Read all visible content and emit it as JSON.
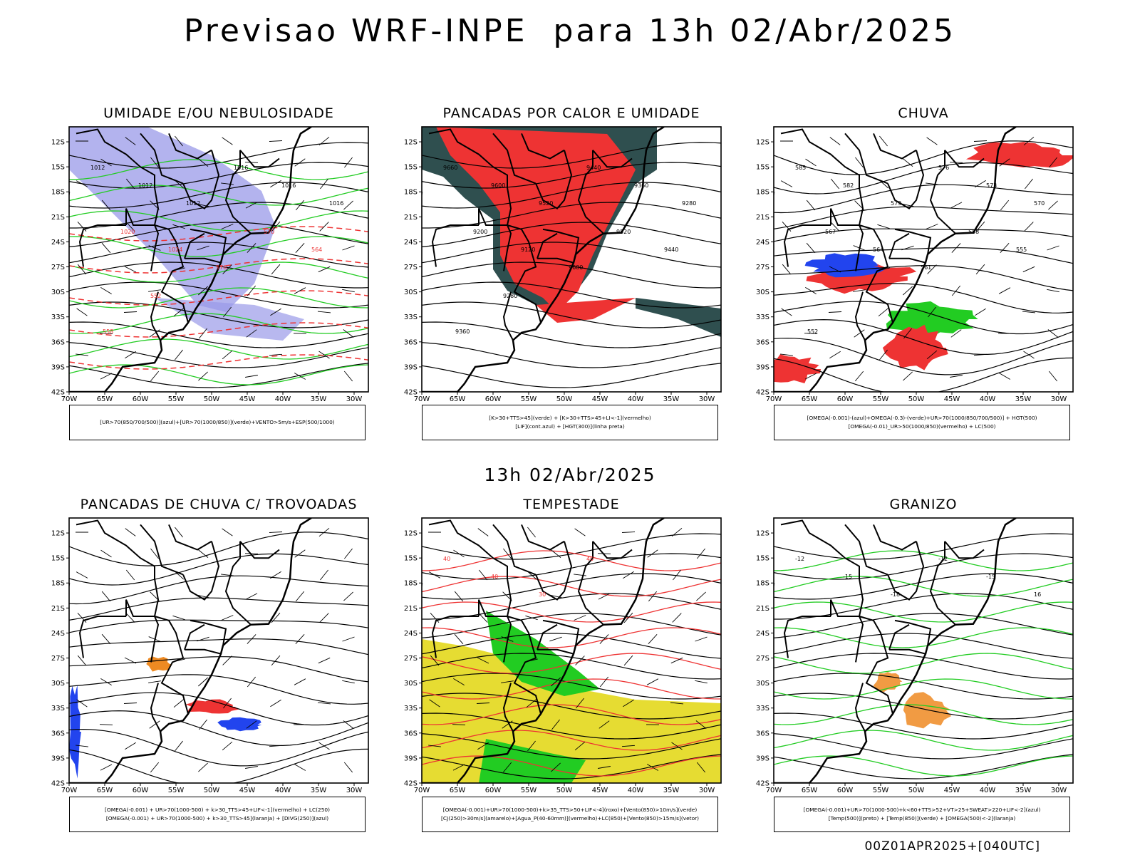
{
  "header": {
    "title": "Previsao WRF-INPE  para 13h 02/Abr/2025"
  },
  "mid_title": "13h 02/Abr/2025",
  "footer": "00Z01APR2025+[040UTC]",
  "axes": {
    "lat_ticks": [
      "12S",
      "15S",
      "18S",
      "21S",
      "24S",
      "27S",
      "30S",
      "33S",
      "36S",
      "39S",
      "42S"
    ],
    "lon_ticks": [
      "70W",
      "65W",
      "60W",
      "55W",
      "50W",
      "45W",
      "40W",
      "35W",
      "30W"
    ]
  },
  "colors": {
    "blue": "#9a9ae8",
    "green": "#22cc22",
    "red": "#ee3333",
    "dark_teal": "#2f4f4f",
    "yellow": "#e6dc32",
    "orange": "#ee8a22",
    "deep_blue": "#2244ee"
  },
  "panels": [
    {
      "id": "umidade",
      "title": "UMIDADE E/OU NEBULOSIDADE",
      "legend": [
        "[UR>70(850/700/500)](azul)+[UR>70(1000/850)](verde)+VENTO>5m/s+ESP(500/1000)"
      ],
      "contour_labels": [
        "1012",
        "1012",
        "1012",
        "1016",
        "1016",
        "1016",
        "1020",
        "1024",
        "576",
        "570",
        "564",
        "558",
        "552"
      ]
    },
    {
      "id": "pancadas_calor",
      "title": "PANCADAS POR CALOR E UMIDADE",
      "legend": [
        "[K>30+TTS>45](verde) + [K>30+TTS>45+LI<-1](vermelho)",
        "[LIF](cont.azul) + [HGT(300)](linha preta)"
      ],
      "contour_labels": [
        "9660",
        "9600",
        "9520",
        "9440",
        "9360",
        "9280",
        "9200",
        "9120",
        "9600",
        "9520",
        "9440",
        "9360",
        "9280"
      ]
    },
    {
      "id": "chuva",
      "title": "CHUVA",
      "legend": [
        "[OMEGA(-0.001)-(azul)+OMEGA(-0.3)-(verde)+UR>70(1000/850/700/500)] + HGT(500)",
        "[OMEGA(-0.01)_UR>50(1000/850)(vermelho) + LC(500)"
      ],
      "contour_labels": [
        "585",
        "582",
        "579",
        "576",
        "573",
        "570",
        "567",
        "564",
        "561",
        "558",
        "555",
        "552"
      ]
    },
    {
      "id": "trovoadas",
      "title": "PANCADAS DE CHUVA C/ TROVOADAS",
      "legend": [
        "[OMEGA(-0.001) + UR>70(1000-500) + k>30_TTS>45+LIF<-1](vermelho) + LC(250)",
        "[OMEGA(-0.001) + UR>70(1000-500) + k>30_TTS>45](laranja) + [DIVG(250)](azul)"
      ],
      "contour_labels": []
    },
    {
      "id": "tempestade",
      "title": "TEMPESTADE",
      "legend": [
        "[OMEGA(-0.001)+UR>70(1000-500)+k>35_TTS>50+LIF<-4](roxo)+[Vento(850)>10m/s](verde)",
        "[CJ(250)>30m/s](amarelo)+[Agua_P(40-60mm)](vermelho)+LC(850)+[Vento(850)>15m/s](vetor)"
      ],
      "contour_labels": [
        "40",
        "40",
        "30",
        "40"
      ]
    },
    {
      "id": "granizo",
      "title": "GRANIZO",
      "legend": [
        "[OMEGA(-0.001)+UR>70(1000-500)+k<60+TTS>52+VT>25+SWEAT>220+LIF<-2](azul)",
        "[Temp(500)](preto) + [Temp(850)](verde) + [OMEGA(500)<-2](laranja)"
      ],
      "contour_labels": [
        "-12",
        "-15",
        "-18",
        "-12",
        "-15",
        "16"
      ]
    }
  ]
}
